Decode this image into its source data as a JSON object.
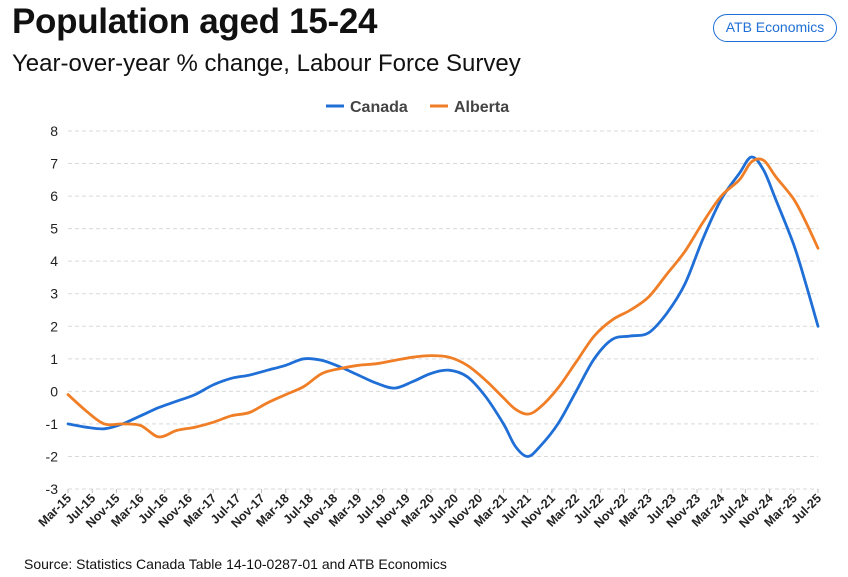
{
  "header": {
    "title": "Population aged 15-24",
    "subtitle": "Year-over-year % change, Labour Force Survey",
    "badge": "ATB Economics"
  },
  "footer": {
    "source": "Source: Statistics Canada Table 14-10-0287-01 and ATB Economics"
  },
  "chart_data": {
    "type": "line",
    "title": "Population aged 15-24",
    "subtitle": "Year-over-year % change, Labour Force Survey",
    "xlabel": "",
    "ylabel": "",
    "x_range": [
      "2015-03",
      "2025-07"
    ],
    "ylim": [
      -3,
      8
    ],
    "yticks": [
      8,
      7,
      6,
      5,
      4,
      3,
      2,
      1,
      0,
      -1,
      -2,
      -3
    ],
    "xtick_labels": [
      "Mar-15",
      "Jul-15",
      "Nov-15",
      "Mar-16",
      "Jul-16",
      "Nov-16",
      "Mar-17",
      "Jul-17",
      "Nov-17",
      "Mar-18",
      "Jul-18",
      "Nov-18",
      "Mar-19",
      "Jul-19",
      "Nov-19",
      "Mar-20",
      "Jul-20",
      "Nov-20",
      "Mar-21",
      "Jul-21",
      "Nov-21",
      "Mar-22",
      "Jul-22",
      "Nov-22",
      "Mar-23",
      "Jul-23",
      "Nov-23",
      "Mar-24",
      "Jul-24",
      "Nov-24",
      "Mar-25",
      "Jul-25"
    ],
    "grid": "horizontal dashed",
    "legend_position": "top-center",
    "series": [
      {
        "name": "Canada",
        "color": "#1f6fd6",
        "points": [
          [
            "2015-03",
            -1.0
          ],
          [
            "2015-06",
            -1.1
          ],
          [
            "2015-09",
            -1.15
          ],
          [
            "2015-12",
            -1.0
          ],
          [
            "2016-03",
            -0.75
          ],
          [
            "2016-06",
            -0.5
          ],
          [
            "2016-09",
            -0.3
          ],
          [
            "2016-12",
            -0.1
          ],
          [
            "2017-03",
            0.2
          ],
          [
            "2017-06",
            0.4
          ],
          [
            "2017-09",
            0.5
          ],
          [
            "2017-12",
            0.65
          ],
          [
            "2018-03",
            0.8
          ],
          [
            "2018-06",
            1.0
          ],
          [
            "2018-09",
            0.95
          ],
          [
            "2018-12",
            0.75
          ],
          [
            "2019-03",
            0.5
          ],
          [
            "2019-06",
            0.25
          ],
          [
            "2019-09",
            0.1
          ],
          [
            "2019-12",
            0.3
          ],
          [
            "2020-03",
            0.55
          ],
          [
            "2020-06",
            0.65
          ],
          [
            "2020-09",
            0.45
          ],
          [
            "2020-12",
            -0.15
          ],
          [
            "2021-03",
            -1.0
          ],
          [
            "2021-05",
            -1.7
          ],
          [
            "2021-07",
            -2.0
          ],
          [
            "2021-09",
            -1.7
          ],
          [
            "2021-12",
            -1.0
          ],
          [
            "2022-03",
            0.0
          ],
          [
            "2022-06",
            1.0
          ],
          [
            "2022-09",
            1.6
          ],
          [
            "2022-12",
            1.7
          ],
          [
            "2023-03",
            1.8
          ],
          [
            "2023-06",
            2.4
          ],
          [
            "2023-09",
            3.3
          ],
          [
            "2023-12",
            4.7
          ],
          [
            "2024-03",
            5.9
          ],
          [
            "2024-06",
            6.7
          ],
          [
            "2024-08",
            7.2
          ],
          [
            "2024-10",
            6.8
          ],
          [
            "2024-12",
            5.9
          ],
          [
            "2025-03",
            4.5
          ],
          [
            "2025-05",
            3.3
          ],
          [
            "2025-07",
            2.0
          ]
        ]
      },
      {
        "name": "Alberta",
        "color": "#f07e26",
        "points": [
          [
            "2015-03",
            -0.1
          ],
          [
            "2015-06",
            -0.6
          ],
          [
            "2015-09",
            -1.0
          ],
          [
            "2015-12",
            -1.0
          ],
          [
            "2016-03",
            -1.05
          ],
          [
            "2016-06",
            -1.4
          ],
          [
            "2016-09",
            -1.2
          ],
          [
            "2016-12",
            -1.1
          ],
          [
            "2017-03",
            -0.95
          ],
          [
            "2017-06",
            -0.75
          ],
          [
            "2017-09",
            -0.65
          ],
          [
            "2017-12",
            -0.35
          ],
          [
            "2018-03",
            -0.1
          ],
          [
            "2018-06",
            0.15
          ],
          [
            "2018-09",
            0.55
          ],
          [
            "2018-12",
            0.7
          ],
          [
            "2019-03",
            0.8
          ],
          [
            "2019-06",
            0.85
          ],
          [
            "2019-09",
            0.95
          ],
          [
            "2019-12",
            1.05
          ],
          [
            "2020-03",
            1.1
          ],
          [
            "2020-06",
            1.05
          ],
          [
            "2020-09",
            0.8
          ],
          [
            "2020-12",
            0.35
          ],
          [
            "2021-03",
            -0.2
          ],
          [
            "2021-05",
            -0.55
          ],
          [
            "2021-07",
            -0.7
          ],
          [
            "2021-09",
            -0.5
          ],
          [
            "2021-12",
            0.1
          ],
          [
            "2022-03",
            0.9
          ],
          [
            "2022-06",
            1.7
          ],
          [
            "2022-09",
            2.2
          ],
          [
            "2022-12",
            2.5
          ],
          [
            "2023-03",
            2.9
          ],
          [
            "2023-06",
            3.6
          ],
          [
            "2023-09",
            4.3
          ],
          [
            "2023-12",
            5.2
          ],
          [
            "2024-03",
            6.0
          ],
          [
            "2024-06",
            6.5
          ],
          [
            "2024-08",
            7.05
          ],
          [
            "2024-10",
            7.1
          ],
          [
            "2024-12",
            6.6
          ],
          [
            "2025-03",
            5.9
          ],
          [
            "2025-05",
            5.2
          ],
          [
            "2025-07",
            4.4
          ]
        ]
      }
    ]
  }
}
